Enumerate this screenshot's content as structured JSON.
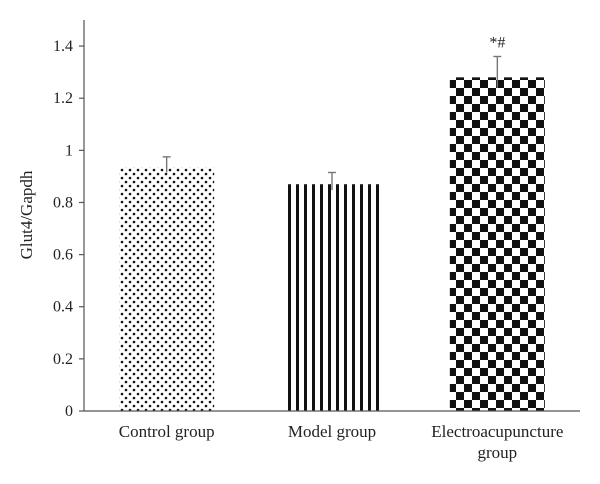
{
  "chart_data": {
    "type": "bar",
    "title": "",
    "xlabel": "",
    "ylabel": "Glut4/Gapdh",
    "ylim": [
      0,
      1.5
    ],
    "yticks": [
      "0",
      "0.2",
      "0.4",
      "0.6",
      "0.8",
      "1",
      "1.2",
      "1.4"
    ],
    "categories": [
      [
        "Control group"
      ],
      [
        "Model group"
      ],
      [
        "Electroacupuncture",
        "group"
      ]
    ],
    "values": [
      0.935,
      0.87,
      1.28
    ],
    "errors": [
      0.04,
      0.045,
      0.08
    ],
    "annotations": [
      "",
      "",
      "*#"
    ],
    "patterns": [
      "dots",
      "vertical-stripes",
      "checkerboard"
    ],
    "grid": false,
    "colors": {
      "ink": "#111111",
      "axis": "#555555",
      "background": "#ffffff"
    }
  }
}
